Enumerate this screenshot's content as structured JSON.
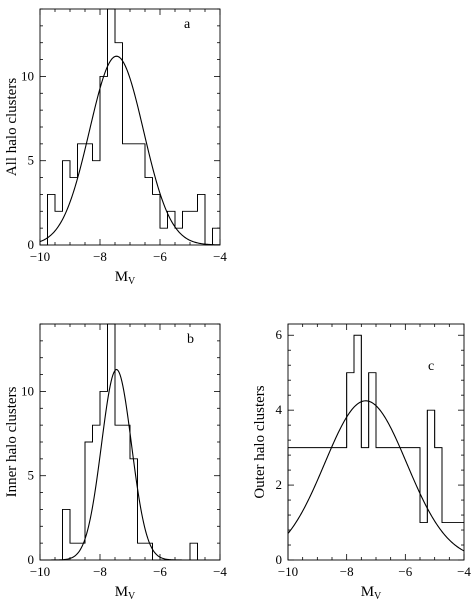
{
  "chart_data": [
    {
      "id": "a",
      "type": "histogram",
      "panel_label": "a",
      "xlabel": "M",
      "xlabel_sub": "V",
      "ylabel": "All halo clusters",
      "xlim": [
        -10,
        -4
      ],
      "ylim": [
        0,
        14
      ],
      "xticks": [
        -10,
        -8,
        -6,
        -4
      ],
      "yticks": [
        0,
        5,
        10
      ],
      "bin_edges": [
        -10.0,
        -9.75,
        -9.5,
        -9.25,
        -9.0,
        -8.75,
        -8.5,
        -8.25,
        -8.0,
        -7.75,
        -7.5,
        -7.25,
        -7.0,
        -6.75,
        -6.5,
        -6.25,
        -6.0,
        -5.75,
        -5.5,
        -5.25,
        -5.0,
        -4.75,
        -4.5,
        -4.25,
        -4.0
      ],
      "counts": [
        0,
        3,
        2,
        5,
        4,
        6,
        6,
        5,
        10,
        14,
        12,
        6,
        6,
        6,
        4,
        3,
        1,
        2,
        1,
        2,
        2,
        3,
        0,
        1
      ],
      "fit_curve": {
        "type": "gaussian",
        "amplitude": 11.2,
        "mean": -7.45,
        "sigma": 0.9
      }
    },
    {
      "id": "b",
      "type": "histogram",
      "panel_label": "b",
      "xlabel": "M",
      "xlabel_sub": "V",
      "ylabel": "Inner halo clusters",
      "xlim": [
        -10,
        -4
      ],
      "ylim": [
        0,
        14
      ],
      "xticks": [
        -10,
        -8,
        -6,
        -4
      ],
      "yticks": [
        0,
        5,
        10
      ],
      "bin_edges": [
        -10.0,
        -9.75,
        -9.5,
        -9.25,
        -9.0,
        -8.75,
        -8.5,
        -8.25,
        -8.0,
        -7.75,
        -7.5,
        -7.25,
        -7.0,
        -6.75,
        -6.5,
        -6.25,
        -6.0,
        -5.75,
        -5.5,
        -5.25,
        -5.0,
        -4.75,
        -4.5,
        -4.25,
        -4.0
      ],
      "counts": [
        0,
        0,
        0,
        3,
        1,
        1,
        7,
        8,
        10,
        14,
        8,
        8,
        6,
        1,
        1,
        0,
        0,
        0,
        0,
        0,
        1,
        0,
        0,
        0
      ],
      "fit_curve": {
        "type": "gaussian",
        "amplitude": 11.3,
        "mean": -7.45,
        "sigma": 0.5
      }
    },
    {
      "id": "c",
      "type": "histogram",
      "panel_label": "c",
      "xlabel": "M",
      "xlabel_sub": "V",
      "ylabel": "Outer halo clusters",
      "xlim": [
        -10,
        -4
      ],
      "ylim": [
        0,
        6.3
      ],
      "xticks": [
        -10,
        -8,
        -6,
        -4
      ],
      "yticks": [
        0,
        2,
        4,
        6
      ],
      "bin_edges": [
        -10.0,
        -9.5,
        -9.0,
        -8.5,
        -8.0,
        -7.75,
        -7.5,
        -7.25,
        -7.0,
        -6.5,
        -6.0,
        -5.5,
        -5.25,
        -5.0,
        -4.75,
        -4.5,
        -4.0
      ],
      "counts": [
        3,
        3,
        3,
        3,
        5,
        6,
        3,
        5,
        3,
        3,
        3,
        1,
        4,
        3,
        1,
        1
      ],
      "fit_curve": {
        "type": "gaussian",
        "amplitude": 4.25,
        "mean": -7.35,
        "sigma": 1.4
      }
    }
  ]
}
